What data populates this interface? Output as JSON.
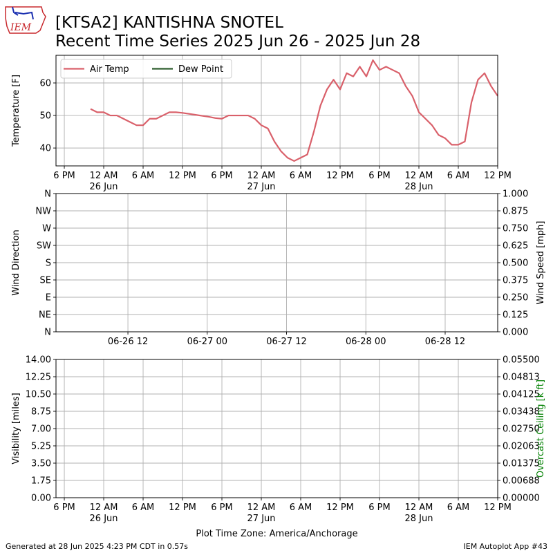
{
  "logo_text": "IEM",
  "title": [
    "[KTSA2] KANTISHNA SNOTEL",
    "Recent Time Series 2025 Jun 26 - 2025 Jun 28"
  ],
  "chart_data": [
    {
      "type": "line",
      "ylabel": "Temperature [F]",
      "x": [
        "06-25 22:00",
        "06-25 23:00",
        "06-26 00:00",
        "06-26 01:00",
        "06-26 02:00",
        "06-26 03:00",
        "06-26 04:00",
        "06-26 05:00",
        "06-26 06:00",
        "06-26 07:00",
        "06-26 08:00",
        "06-26 09:00",
        "06-26 10:00",
        "06-26 11:00",
        "06-26 12:00",
        "06-26 13:00",
        "06-26 14:00",
        "06-26 15:00",
        "06-26 16:00",
        "06-26 17:00",
        "06-26 18:00",
        "06-26 19:00",
        "06-26 20:00",
        "06-26 21:00",
        "06-26 22:00",
        "06-26 23:00",
        "06-27 00:00",
        "06-27 01:00",
        "06-27 02:00",
        "06-27 03:00",
        "06-27 04:00",
        "06-27 05:00",
        "06-27 06:00",
        "06-27 07:00",
        "06-27 08:00",
        "06-27 09:00",
        "06-27 10:00",
        "06-27 11:00",
        "06-27 12:00",
        "06-27 13:00",
        "06-27 14:00",
        "06-27 15:00",
        "06-27 16:00",
        "06-27 17:00",
        "06-27 18:00",
        "06-27 19:00",
        "06-27 20:00",
        "06-27 21:00",
        "06-27 22:00",
        "06-27 23:00",
        "06-28 00:00",
        "06-28 01:00",
        "06-28 02:00",
        "06-28 03:00",
        "06-28 04:00",
        "06-28 05:00",
        "06-28 06:00",
        "06-28 07:00",
        "06-28 08:00",
        "06-28 09:00",
        "06-28 10:00",
        "06-28 11:00",
        "06-28 12:00"
      ],
      "series": [
        {
          "name": "Air Temp",
          "color": "#d9606a",
          "values": [
            52,
            51,
            51,
            50,
            50,
            49,
            48,
            47,
            47,
            49,
            49,
            50,
            51,
            51,
            50.8,
            50.5,
            50.2,
            49.9,
            49.6,
            49.2,
            49,
            50,
            50,
            50,
            50,
            49,
            47,
            46,
            42,
            39,
            37,
            36,
            37,
            38,
            45,
            53,
            58,
            61,
            58,
            63,
            62,
            65,
            62,
            67,
            64,
            65,
            64,
            63,
            59,
            56,
            51,
            49,
            47,
            44,
            43,
            41,
            41,
            42,
            54,
            61,
            63,
            59,
            56
          ]
        },
        {
          "name": "Dew Point",
          "color": "#2e5e2e",
          "values": [
            null,
            null,
            null,
            null,
            null,
            null,
            null,
            null,
            null,
            null,
            null,
            null,
            null,
            null,
            null,
            null,
            null,
            null,
            null,
            null,
            null,
            null,
            null,
            null,
            null,
            null,
            null,
            null,
            null,
            null,
            null,
            null,
            null,
            null,
            null,
            null,
            null,
            null,
            null,
            null,
            null,
            null,
            null,
            null,
            null,
            null,
            null,
            null,
            null,
            null,
            null,
            null,
            null,
            null,
            null,
            null,
            null,
            null,
            null,
            null,
            null,
            null,
            null
          ]
        }
      ],
      "xlim": [
        "06-25 16:44",
        "06-28 12:00"
      ],
      "xticks": [
        {
          "value": "06-25 18:00",
          "label": "6 PM"
        },
        {
          "value": "06-26 00:00",
          "label": "12 AM\n26 Jun"
        },
        {
          "value": "06-26 06:00",
          "label": "6 AM"
        },
        {
          "value": "06-26 12:00",
          "label": "12 PM"
        },
        {
          "value": "06-26 18:00",
          "label": "6 PM"
        },
        {
          "value": "06-27 00:00",
          "label": "12 AM\n27 Jun"
        },
        {
          "value": "06-27 06:00",
          "label": "6 AM"
        },
        {
          "value": "06-27 12:00",
          "label": "12 PM"
        },
        {
          "value": "06-27 18:00",
          "label": "6 PM"
        },
        {
          "value": "06-28 00:00",
          "label": "12 AM\n28 Jun"
        },
        {
          "value": "06-28 06:00",
          "label": "6 AM"
        },
        {
          "value": "06-28 12:00",
          "label": "12 PM"
        }
      ],
      "ylim": [
        34.5,
        68.5
      ],
      "yticks": [
        40,
        50,
        60
      ],
      "grid": true,
      "legend": "upper left"
    },
    {
      "type": "line",
      "ylabel": "Wind Direction",
      "y2label": "Wind Speed [mph]",
      "x": [],
      "series": [],
      "xlim": [
        "06-26 01:07",
        "06-28 19:57"
      ],
      "xticks": [
        {
          "value": "06-26 12:00",
          "label": "06-26 12"
        },
        {
          "value": "06-27 00:00",
          "label": "06-27 00"
        },
        {
          "value": "06-27 12:00",
          "label": "06-27 12"
        },
        {
          "value": "06-28 00:00",
          "label": "06-28 00"
        },
        {
          "value": "06-28 12:00",
          "label": "06-28 12"
        }
      ],
      "ylim": [
        0,
        360
      ],
      "yticks": [
        {
          "value": 0,
          "label": "N"
        },
        {
          "value": 45,
          "label": "NE"
        },
        {
          "value": 90,
          "label": "E"
        },
        {
          "value": 135,
          "label": "SE"
        },
        {
          "value": 180,
          "label": "S"
        },
        {
          "value": 225,
          "label": "SW"
        },
        {
          "value": 270,
          "label": "W"
        },
        {
          "value": 315,
          "label": "NW"
        },
        {
          "value": 360,
          "label": "N"
        }
      ],
      "y2lim": [
        0,
        1
      ],
      "y2ticks": [
        {
          "value": 0,
          "label": "0.000"
        },
        {
          "value": 0.125,
          "label": "0.125"
        },
        {
          "value": 0.25,
          "label": "0.250"
        },
        {
          "value": 0.375,
          "label": "0.375"
        },
        {
          "value": 0.5,
          "label": "0.500"
        },
        {
          "value": 0.625,
          "label": "0.625"
        },
        {
          "value": 0.75,
          "label": "0.750"
        },
        {
          "value": 0.875,
          "label": "0.875"
        },
        {
          "value": 1,
          "label": "1.000"
        }
      ],
      "grid": true
    },
    {
      "type": "line",
      "ylabel": "Visibility [miles]",
      "y2label": "Overcast Ceiling [k ft]",
      "y2label_color": "#008000",
      "xlabel": "Plot Time Zone: America/Anchorage",
      "x": [],
      "series": [],
      "xlim": [
        "06-25 16:44",
        "06-28 12:00"
      ],
      "xticks": [
        {
          "value": "06-25 18:00",
          "label": "6 PM"
        },
        {
          "value": "06-26 00:00",
          "label": "12 AM\n26 Jun"
        },
        {
          "value": "06-26 06:00",
          "label": "6 AM"
        },
        {
          "value": "06-26 12:00",
          "label": "12 PM"
        },
        {
          "value": "06-26 18:00",
          "label": "6 PM"
        },
        {
          "value": "06-27 00:00",
          "label": "12 AM\n27 Jun"
        },
        {
          "value": "06-27 06:00",
          "label": "6 AM"
        },
        {
          "value": "06-27 12:00",
          "label": "12 PM"
        },
        {
          "value": "06-27 18:00",
          "label": "6 PM"
        },
        {
          "value": "06-28 00:00",
          "label": "12 AM\n28 Jun"
        },
        {
          "value": "06-28 06:00",
          "label": "6 AM"
        },
        {
          "value": "06-28 12:00",
          "label": "12 PM"
        }
      ],
      "ylim": [
        0,
        14
      ],
      "yticks": [
        {
          "value": 0,
          "label": "0.00"
        },
        {
          "value": 1.75,
          "label": "1.75"
        },
        {
          "value": 3.5,
          "label": "3.50"
        },
        {
          "value": 5.25,
          "label": "5.25"
        },
        {
          "value": 7,
          "label": "7.00"
        },
        {
          "value": 8.75,
          "label": "8.75"
        },
        {
          "value": 10.5,
          "label": "10.50"
        },
        {
          "value": 12.25,
          "label": "12.25"
        },
        {
          "value": 14,
          "label": "14.00"
        }
      ],
      "y2lim": [
        0,
        0.055
      ],
      "y2ticks": [
        {
          "value": 0,
          "label": "0.00000"
        },
        {
          "value": 0.006875,
          "label": "0.00688"
        },
        {
          "value": 0.01375,
          "label": "0.01375"
        },
        {
          "value": 0.020625,
          "label": "0.02063"
        },
        {
          "value": 0.0275,
          "label": "0.02750"
        },
        {
          "value": 0.034375,
          "label": "0.03438"
        },
        {
          "value": 0.04125,
          "label": "0.04125"
        },
        {
          "value": 0.048125,
          "label": "0.04813"
        },
        {
          "value": 0.055,
          "label": "0.05500"
        }
      ],
      "grid": true
    }
  ],
  "footer": {
    "left": "Generated at 28 Jun 2025 4:23 PM CDT in 0.57s",
    "right": "IEM Autoplot App #43"
  }
}
